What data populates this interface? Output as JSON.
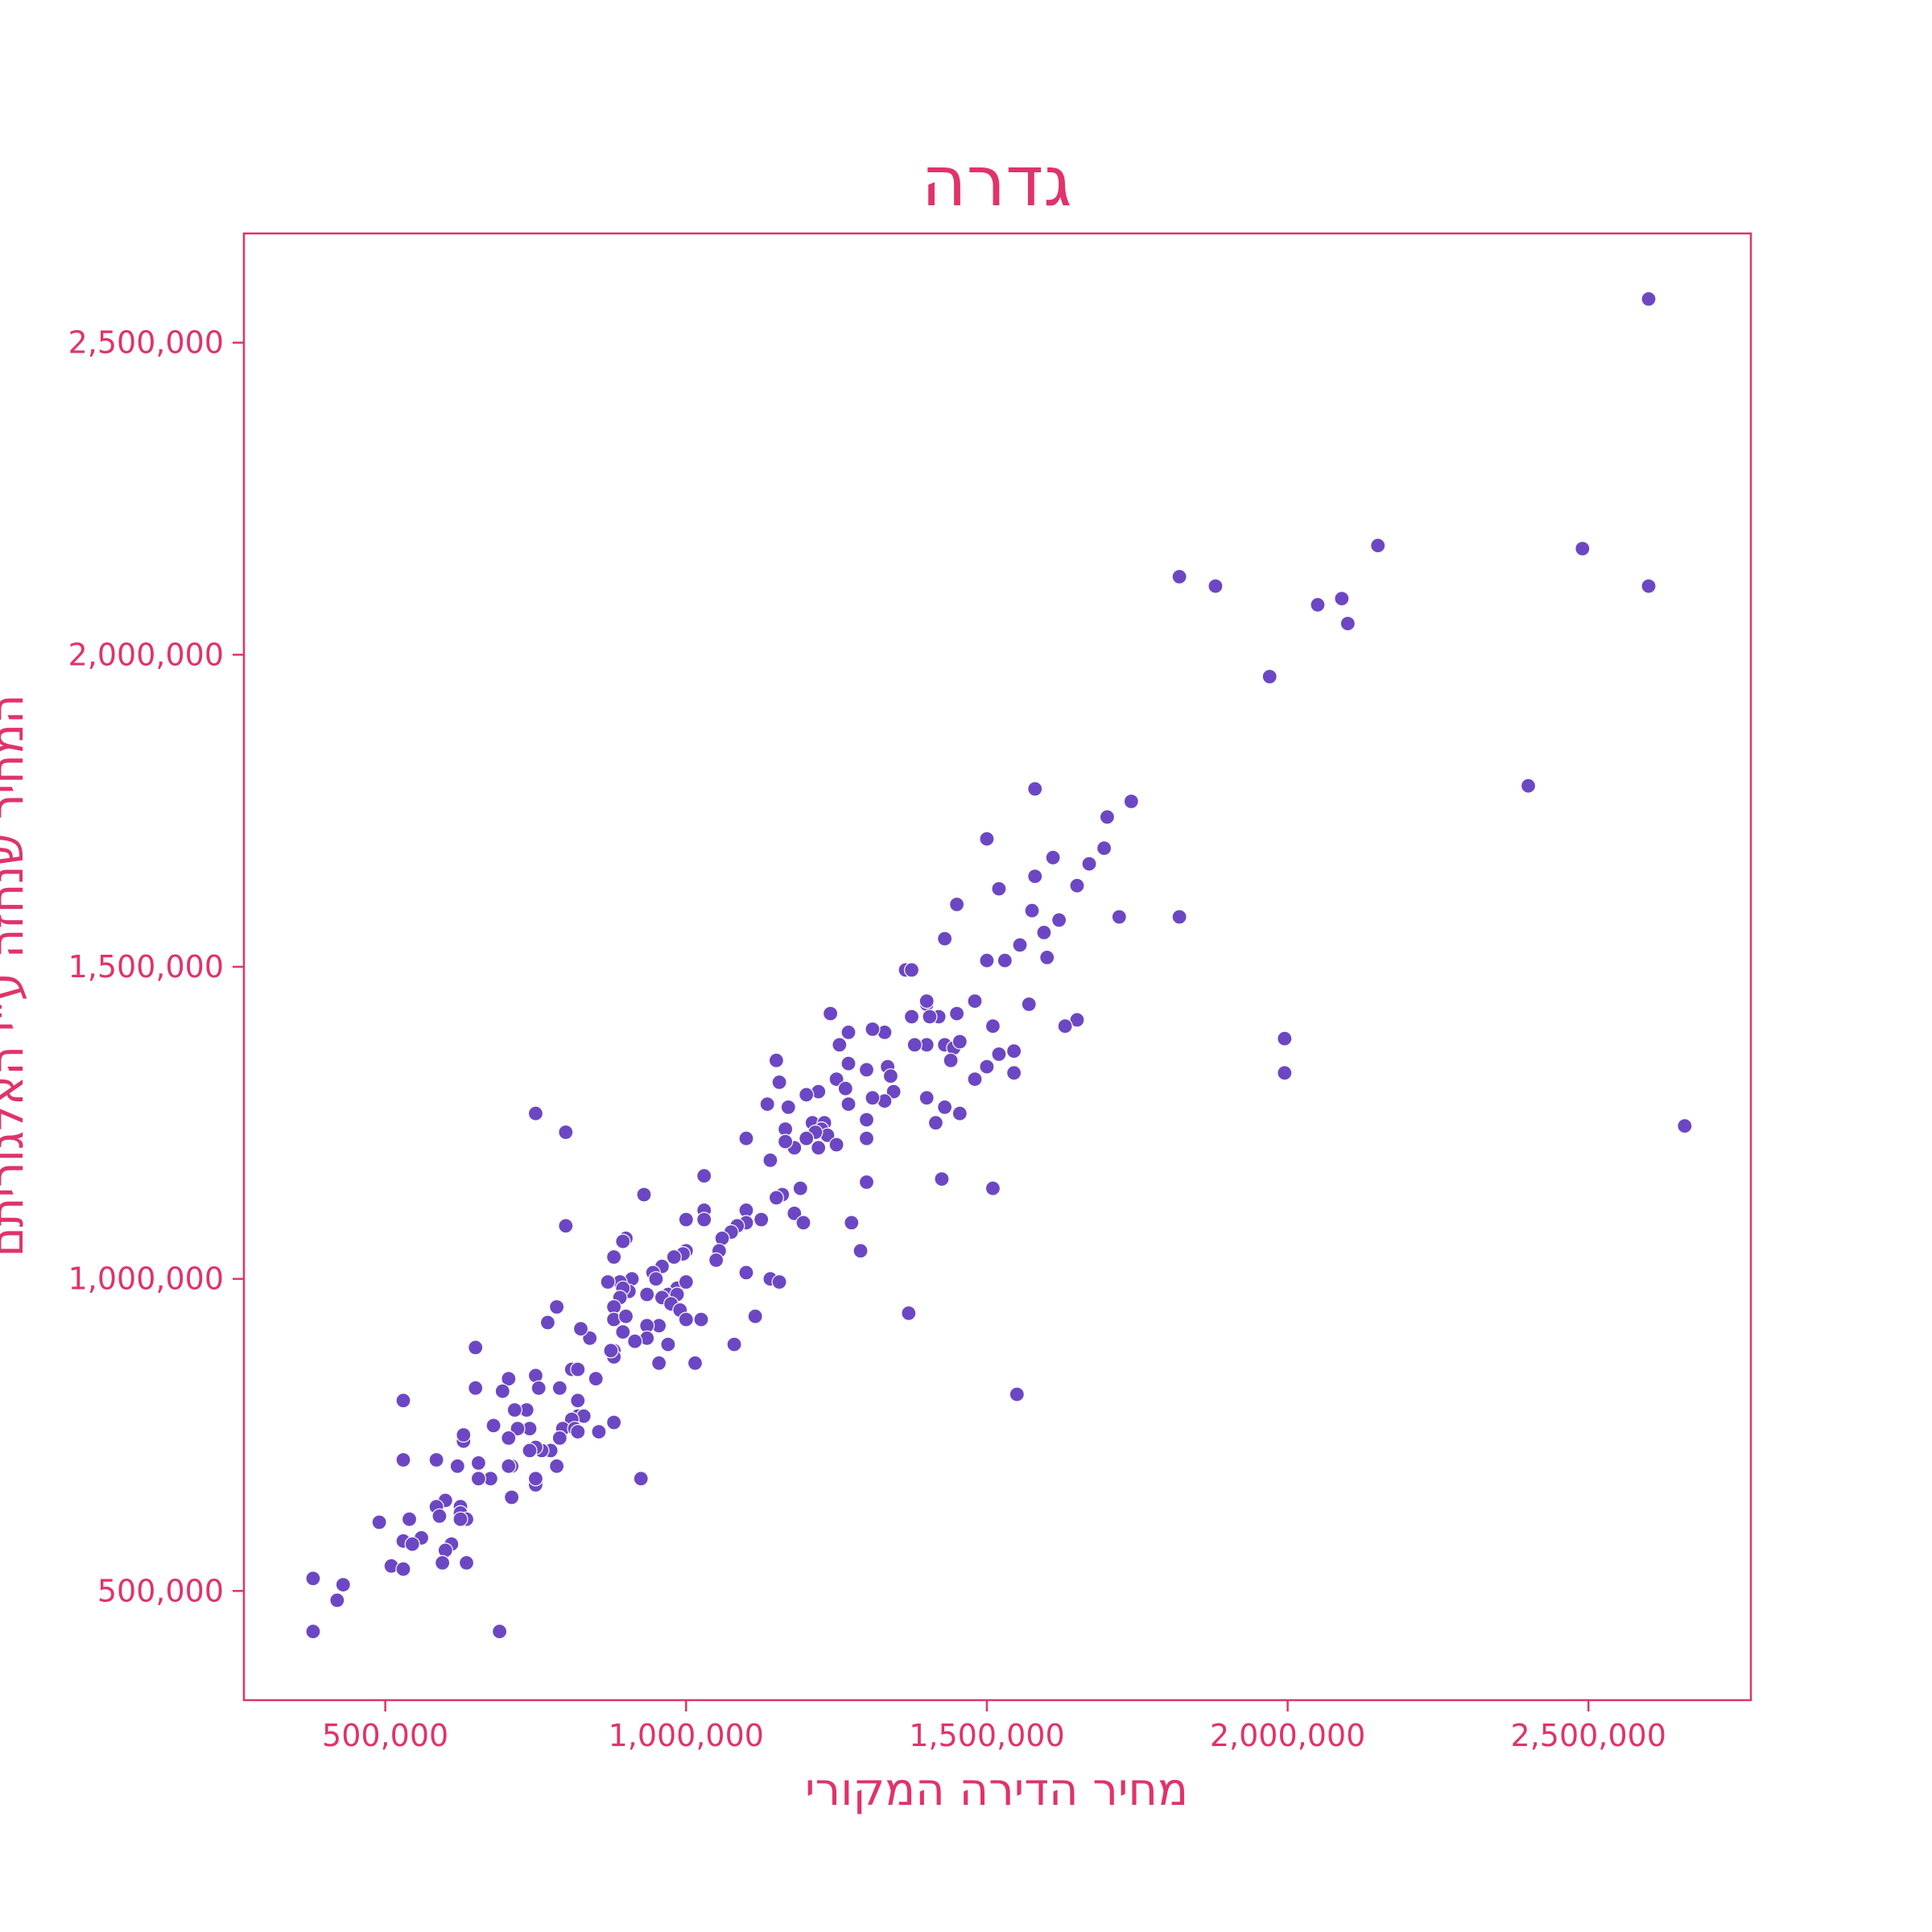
{
  "colors": {
    "accent": "#e0336b",
    "point_fill": "#6c47c4",
    "point_edge": "#ffffff",
    "background": "#ffffff"
  },
  "chart_data": {
    "type": "scatter",
    "title": "גדרה",
    "xlabel": "מחיר הדירה המקורי",
    "ylabel": "המחיר שנחזה ע\"י האלגוריתם",
    "xlim": [
      265000,
      2770000
    ],
    "ylim": [
      325000,
      2675000
    ],
    "x_ticks": [
      500000,
      1000000,
      1500000,
      2000000,
      2500000
    ],
    "x_tick_labels": [
      "500,000",
      "1,000,000",
      "1,500,000",
      "2,000,000",
      "2,500,000"
    ],
    "y_ticks": [
      500000,
      1000000,
      1500000,
      2000000,
      2500000
    ],
    "y_tick_labels": [
      "500,000",
      "1,000,000",
      "1,500,000",
      "2,000,000",
      "2,500,000"
    ],
    "grid": false,
    "legend": "none",
    "points": [
      [
        2600000,
        2570000
      ],
      [
        2490000,
        2170000
      ],
      [
        2600000,
        2110000
      ],
      [
        2660000,
        1245000
      ],
      [
        2400000,
        1790000
      ],
      [
        1820000,
        2125000
      ],
      [
        1880000,
        2110000
      ],
      [
        2150000,
        2175000
      ],
      [
        2050000,
        2080000
      ],
      [
        2090000,
        2090000
      ],
      [
        2100000,
        2050000
      ],
      [
        1970000,
        1965000
      ],
      [
        1995000,
        1385000
      ],
      [
        1995000,
        1330000
      ],
      [
        1740000,
        1765000
      ],
      [
        1700000,
        1740000
      ],
      [
        1695000,
        1690000
      ],
      [
        1670000,
        1665000
      ],
      [
        1650000,
        1630000
      ],
      [
        1720000,
        1580000
      ],
      [
        1820000,
        1580000
      ],
      [
        1610000,
        1675000
      ],
      [
        1580000,
        1785000
      ],
      [
        1500000,
        1705000
      ],
      [
        1580000,
        1645000
      ],
      [
        1520000,
        1625000
      ],
      [
        1620000,
        1575000
      ],
      [
        1575000,
        1590000
      ],
      [
        1595000,
        1555000
      ],
      [
        1555000,
        1535000
      ],
      [
        1600000,
        1515000
      ],
      [
        1530000,
        1510000
      ],
      [
        1500000,
        1510000
      ],
      [
        1570000,
        1440000
      ],
      [
        1650000,
        1415000
      ],
      [
        1630000,
        1405000
      ],
      [
        1510000,
        1405000
      ],
      [
        1545000,
        1365000
      ],
      [
        1520000,
        1360000
      ],
      [
        1500000,
        1340000
      ],
      [
        1545000,
        1330000
      ],
      [
        1480000,
        1320000
      ],
      [
        1480000,
        1445000
      ],
      [
        1450000,
        1600000
      ],
      [
        1430000,
        1545000
      ],
      [
        1365000,
        1495000
      ],
      [
        1375000,
        1495000
      ],
      [
        1450000,
        1425000
      ],
      [
        1420000,
        1420000
      ],
      [
        1400000,
        1440000
      ],
      [
        1400000,
        1445000
      ],
      [
        1375000,
        1420000
      ],
      [
        1405000,
        1420000
      ],
      [
        1430000,
        1375000
      ],
      [
        1445000,
        1370000
      ],
      [
        1455000,
        1380000
      ],
      [
        1440000,
        1350000
      ],
      [
        1400000,
        1375000
      ],
      [
        1380000,
        1375000
      ],
      [
        1400000,
        1290000
      ],
      [
        1430000,
        1275000
      ],
      [
        1455000,
        1265000
      ],
      [
        1415000,
        1250000
      ],
      [
        1425000,
        1160000
      ],
      [
        1510000,
        1145000
      ],
      [
        1370000,
        945000
      ],
      [
        1550000,
        815000
      ],
      [
        1330000,
        1395000
      ],
      [
        1310000,
        1400000
      ],
      [
        1335000,
        1340000
      ],
      [
        1340000,
        1325000
      ],
      [
        1345000,
        1300000
      ],
      [
        1330000,
        1285000
      ],
      [
        1300000,
        1335000
      ],
      [
        1310000,
        1290000
      ],
      [
        1300000,
        1255000
      ],
      [
        1300000,
        1225000
      ],
      [
        1300000,
        1155000
      ],
      [
        1275000,
        1090000
      ],
      [
        1290000,
        1045000
      ],
      [
        1270000,
        1395000
      ],
      [
        1255000,
        1375000
      ],
      [
        1240000,
        1425000
      ],
      [
        1270000,
        1345000
      ],
      [
        1250000,
        1320000
      ],
      [
        1265000,
        1305000
      ],
      [
        1270000,
        1280000
      ],
      [
        1220000,
        1300000
      ],
      [
        1200000,
        1295000
      ],
      [
        1210000,
        1250000
      ],
      [
        1230000,
        1250000
      ],
      [
        1225000,
        1240000
      ],
      [
        1235000,
        1230000
      ],
      [
        1215000,
        1235000
      ],
      [
        1200000,
        1225000
      ],
      [
        1220000,
        1210000
      ],
      [
        1250000,
        1215000
      ],
      [
        1180000,
        1210000
      ],
      [
        1165000,
        1240000
      ],
      [
        1170000,
        1275000
      ],
      [
        1165000,
        1220000
      ],
      [
        1135000,
        1280000
      ],
      [
        1150000,
        1350000
      ],
      [
        1155000,
        1315000
      ],
      [
        1140000,
        1190000
      ],
      [
        1190000,
        1145000
      ],
      [
        1160000,
        1135000
      ],
      [
        1150000,
        1130000
      ],
      [
        1180000,
        1105000
      ],
      [
        1195000,
        1090000
      ],
      [
        1100000,
        1225000
      ],
      [
        1125000,
        1095000
      ],
      [
        1100000,
        1110000
      ],
      [
        1100000,
        1090000
      ],
      [
        1085000,
        1085000
      ],
      [
        1075000,
        1075000
      ],
      [
        1060000,
        1065000
      ],
      [
        1055000,
        1045000
      ],
      [
        1050000,
        1030000
      ],
      [
        1100000,
        1010000
      ],
      [
        1140000,
        1000000
      ],
      [
        1155000,
        995000
      ],
      [
        1115000,
        940000
      ],
      [
        1080000,
        895000
      ],
      [
        1030000,
        1165000
      ],
      [
        1030000,
        1110000
      ],
      [
        1030000,
        1095000
      ],
      [
        1000000,
        1095000
      ],
      [
        1000000,
        1045000
      ],
      [
        995000,
        1040000
      ],
      [
        980000,
        1035000
      ],
      [
        960000,
        1020000
      ],
      [
        945000,
        1010000
      ],
      [
        950000,
        1000000
      ],
      [
        985000,
        985000
      ],
      [
        1000000,
        995000
      ],
      [
        970000,
        975000
      ],
      [
        985000,
        975000
      ],
      [
        960000,
        970000
      ],
      [
        975000,
        960000
      ],
      [
        990000,
        950000
      ],
      [
        1000000,
        935000
      ],
      [
        1025000,
        935000
      ],
      [
        955000,
        925000
      ],
      [
        935000,
        925000
      ],
      [
        935000,
        905000
      ],
      [
        915000,
        900000
      ],
      [
        970000,
        895000
      ],
      [
        955000,
        865000
      ],
      [
        1015000,
        865000
      ],
      [
        930000,
        1135000
      ],
      [
        925000,
        680000
      ],
      [
        900000,
        1065000
      ],
      [
        895000,
        1060000
      ],
      [
        880000,
        1035000
      ],
      [
        910000,
        1000000
      ],
      [
        890000,
        995000
      ],
      [
        870000,
        995000
      ],
      [
        905000,
        980000
      ],
      [
        935000,
        975000
      ],
      [
        895000,
        985000
      ],
      [
        890000,
        970000
      ],
      [
        880000,
        955000
      ],
      [
        880000,
        935000
      ],
      [
        900000,
        940000
      ],
      [
        895000,
        915000
      ],
      [
        880000,
        885000
      ],
      [
        880000,
        875000
      ],
      [
        875000,
        885000
      ],
      [
        880000,
        770000
      ],
      [
        850000,
        840000
      ],
      [
        855000,
        755000
      ],
      [
        840000,
        905000
      ],
      [
        825000,
        920000
      ],
      [
        810000,
        855000
      ],
      [
        800000,
        1085000
      ],
      [
        800000,
        1235000
      ],
      [
        750000,
        1265000
      ],
      [
        785000,
        955000
      ],
      [
        770000,
        930000
      ],
      [
        820000,
        855000
      ],
      [
        790000,
        825000
      ],
      [
        750000,
        845000
      ],
      [
        755000,
        825000
      ],
      [
        705000,
        840000
      ],
      [
        695000,
        820000
      ],
      [
        650000,
        890000
      ],
      [
        650000,
        825000
      ],
      [
        820000,
        805000
      ],
      [
        820000,
        780000
      ],
      [
        830000,
        780000
      ],
      [
        810000,
        775000
      ],
      [
        795000,
        760000
      ],
      [
        815000,
        760000
      ],
      [
        790000,
        745000
      ],
      [
        820000,
        755000
      ],
      [
        775000,
        725000
      ],
      [
        760000,
        725000
      ],
      [
        750000,
        730000
      ],
      [
        740000,
        725000
      ],
      [
        740000,
        760000
      ],
      [
        720000,
        760000
      ],
      [
        735000,
        790000
      ],
      [
        715000,
        790000
      ],
      [
        680000,
        765000
      ],
      [
        705000,
        745000
      ],
      [
        710000,
        700000
      ],
      [
        705000,
        700000
      ],
      [
        785000,
        700000
      ],
      [
        750000,
        670000
      ],
      [
        750000,
        680000
      ],
      [
        710000,
        650000
      ],
      [
        675000,
        680000
      ],
      [
        655000,
        680000
      ],
      [
        655000,
        705000
      ],
      [
        630000,
        740000
      ],
      [
        630000,
        750000
      ],
      [
        620000,
        700000
      ],
      [
        625000,
        635000
      ],
      [
        625000,
        625000
      ],
      [
        635000,
        615000
      ],
      [
        625000,
        615000
      ],
      [
        610000,
        575000
      ],
      [
        600000,
        565000
      ],
      [
        595000,
        545000
      ],
      [
        635000,
        545000
      ],
      [
        600000,
        645000
      ],
      [
        585000,
        635000
      ],
      [
        590000,
        620000
      ],
      [
        585000,
        710000
      ],
      [
        530000,
        805000
      ],
      [
        530000,
        710000
      ],
      [
        540000,
        615000
      ],
      [
        560000,
        585000
      ],
      [
        530000,
        580000
      ],
      [
        545000,
        575000
      ],
      [
        510000,
        540000
      ],
      [
        530000,
        535000
      ],
      [
        490000,
        610000
      ],
      [
        430000,
        510000
      ],
      [
        420000,
        485000
      ],
      [
        380000,
        520000
      ],
      [
        380000,
        435000
      ],
      [
        690000,
        435000
      ]
    ]
  }
}
